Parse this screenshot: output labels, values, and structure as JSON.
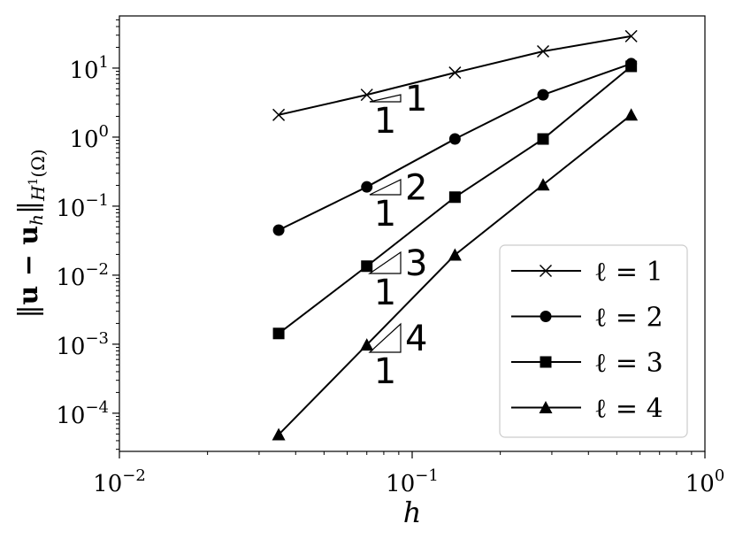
{
  "chart_data": {
    "type": "line",
    "xlabel": "h",
    "ylabel": [
      "‖",
      "u − u",
      "h",
      "‖",
      "H",
      "1",
      "(Ω)"
    ],
    "x": [
      0.035,
      0.07,
      0.14,
      0.28,
      0.56
    ],
    "series": [
      {
        "name": "ℓ = 1",
        "color": "#000000",
        "marker": "x",
        "values": [
          2.1,
          4.1,
          8.6,
          17.5,
          29
        ]
      },
      {
        "name": "ℓ = 2",
        "color": "#000000",
        "marker": "o",
        "values": [
          0.045,
          0.19,
          0.94,
          4.1,
          11.6
        ]
      },
      {
        "name": "ℓ = 3",
        "color": "#000000",
        "marker": "s",
        "values": [
          0.00143,
          0.0135,
          0.135,
          0.94,
          10.6
        ]
      },
      {
        "name": "ℓ = 4",
        "color": "#000000",
        "marker": "^",
        "values": [
          4.9e-05,
          0.00098,
          0.0197,
          0.204,
          2.1
        ]
      }
    ],
    "xscale": "log",
    "yscale": "log",
    "xlim": [
      0.01,
      1
    ],
    "ylim": [
      2.8e-05,
      57
    ],
    "xticks": [
      {
        "value": 0.01,
        "label": "10",
        "sup": "−2"
      },
      {
        "value": 0.1,
        "label": "10",
        "sup": "−1"
      },
      {
        "value": 1,
        "label": "10",
        "sup": "0"
      }
    ],
    "yticks": [
      {
        "value": 0.0001,
        "label": "10",
        "sup": "−4"
      },
      {
        "value": 0.001,
        "label": "10",
        "sup": "−3"
      },
      {
        "value": 0.01,
        "label": "10",
        "sup": "−2"
      },
      {
        "value": 0.1,
        "label": "10",
        "sup": "−1"
      },
      {
        "value": 1,
        "label": "10",
        "sup": "0"
      },
      {
        "value": 10,
        "label": "10",
        "sup": "1"
      }
    ],
    "slope_triangles": [
      {
        "rise": "1",
        "run": "1"
      },
      {
        "rise": "2",
        "run": "1"
      },
      {
        "rise": "3",
        "run": "1"
      },
      {
        "rise": "4",
        "run": "1"
      }
    ],
    "legend": "lower right"
  }
}
